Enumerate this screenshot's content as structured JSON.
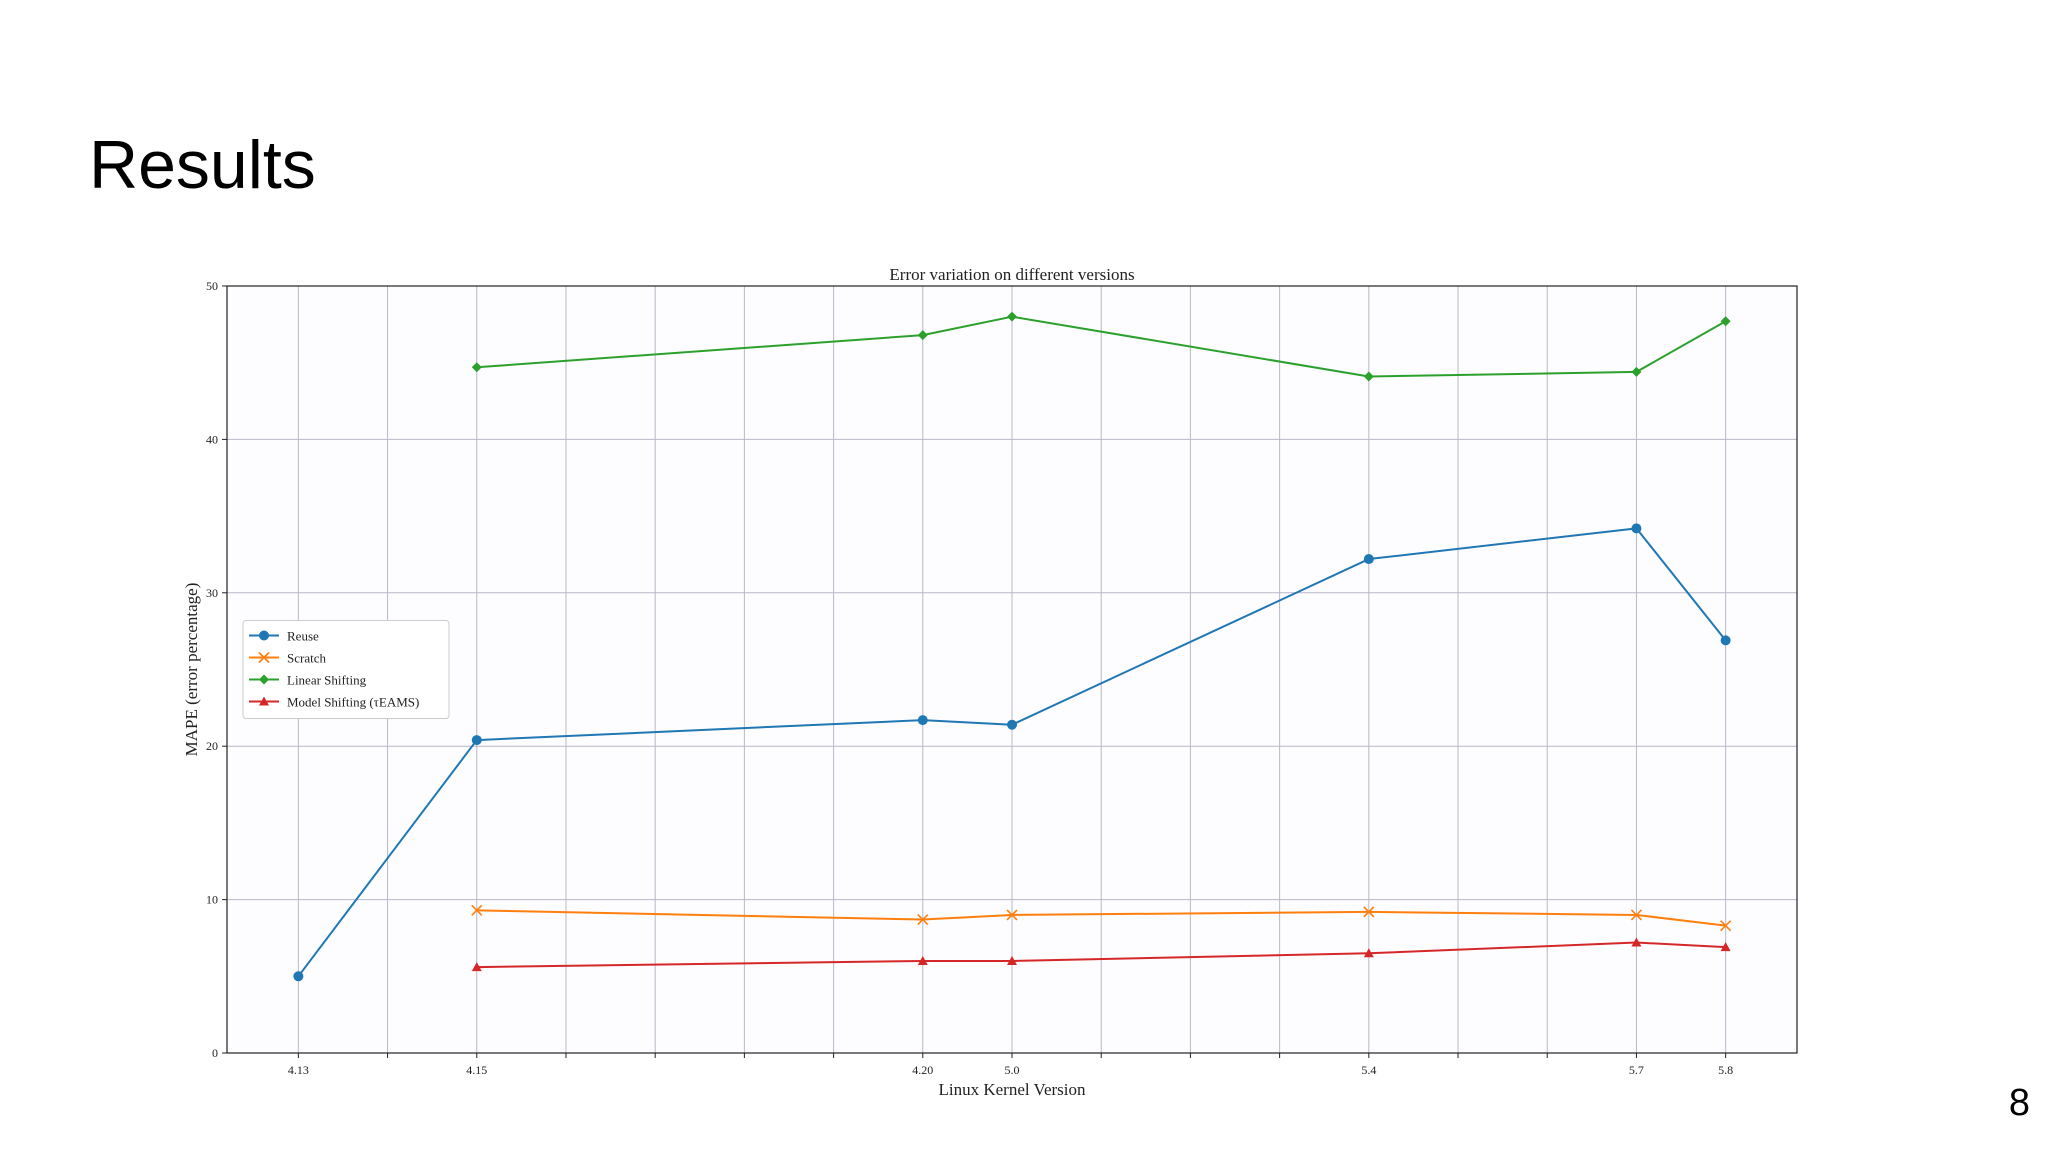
{
  "slide": {
    "title": "Results",
    "page_number": "8"
  },
  "chart_data": {
    "type": "line",
    "title": "Error variation on different versions",
    "x_label": "Linux Kernel Version",
    "y_label": "MAPE (error percentage)",
    "categories": [
      "4.13",
      null,
      "4.15",
      null,
      null,
      null,
      null,
      "4.20",
      "5.0",
      null,
      null,
      null,
      "5.4",
      null,
      null,
      "5.7",
      "5.8"
    ],
    "series": [
      {
        "name": "Reuse",
        "color": "#1f77b4",
        "marker": "o",
        "values": [
          5.0,
          null,
          20.4,
          null,
          null,
          null,
          null,
          21.7,
          21.4,
          null,
          null,
          null,
          32.2,
          null,
          null,
          34.2,
          26.9
        ]
      },
      {
        "name": "Scratch",
        "color": "#ff7f0e",
        "marker": "x",
        "values": [
          null,
          null,
          9.3,
          null,
          null,
          null,
          null,
          8.7,
          9.0,
          null,
          null,
          null,
          9.2,
          null,
          null,
          9.0,
          8.3
        ]
      },
      {
        "name": "Linear Shifting",
        "color": "#2ca02c",
        "marker": "D",
        "values": [
          null,
          null,
          44.7,
          null,
          null,
          null,
          null,
          46.8,
          48.0,
          null,
          null,
          null,
          44.1,
          null,
          null,
          44.4,
          47.7
        ]
      },
      {
        "name": "Model Shifting (τEAMS)",
        "color": "#d62728",
        "marker": "^",
        "values": [
          null,
          null,
          5.6,
          null,
          null,
          null,
          null,
          6.0,
          6.0,
          null,
          null,
          null,
          6.5,
          null,
          null,
          7.2,
          6.9
        ]
      }
    ],
    "ylim": [
      0,
      50
    ],
    "yticks": [
      0,
      10,
      20,
      30,
      40,
      50
    ],
    "grid": true,
    "legend": "center left"
  }
}
